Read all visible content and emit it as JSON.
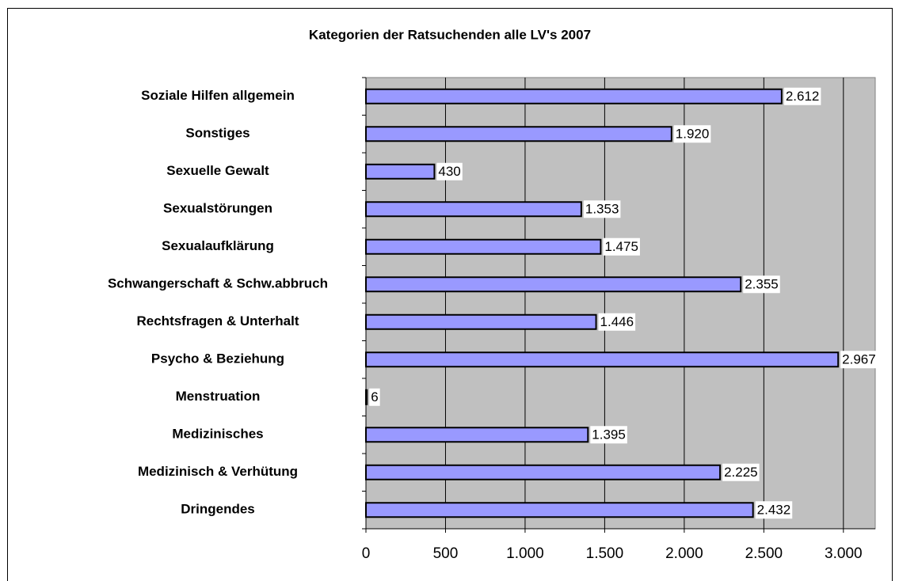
{
  "chart_data": {
    "type": "barh",
    "title": "Kategorien der Ratsuchenden alle LV's 2007",
    "categories": [
      "Soziale Hilfen allgemein",
      "Sonstiges",
      "Sexuelle Gewalt",
      "Sexualstörungen",
      "Sexualaufklärung",
      "Schwangerschaft & Schw.abbruch",
      "Rechtsfragen & Unterhalt",
      "Psycho & Beziehung",
      "Menstruation",
      "Medizinisches",
      "Medizinisch & Verhütung",
      "Dringendes"
    ],
    "values": [
      2612,
      1920,
      430,
      1353,
      1475,
      2355,
      1446,
      2967,
      6,
      1395,
      2225,
      2432
    ],
    "value_labels": [
      "2.612",
      "1.920",
      "430",
      "1.353",
      "1.475",
      "2.355",
      "1.446",
      "2.967",
      "6",
      "1.395",
      "2.225",
      "2.432"
    ],
    "color": "#9999ff",
    "xlim": [
      0,
      3200
    ],
    "xticks": [
      0,
      500,
      {
        "value": 1000,
        "label": "1.000"
      },
      {
        "value": 1500,
        "label": "1.500"
      },
      {
        "value": 2000,
        "label": "2.000"
      },
      {
        "value": 2500,
        "label": "2.500"
      },
      {
        "value": 3000,
        "label": "3.000"
      }
    ],
    "grid": true
  }
}
